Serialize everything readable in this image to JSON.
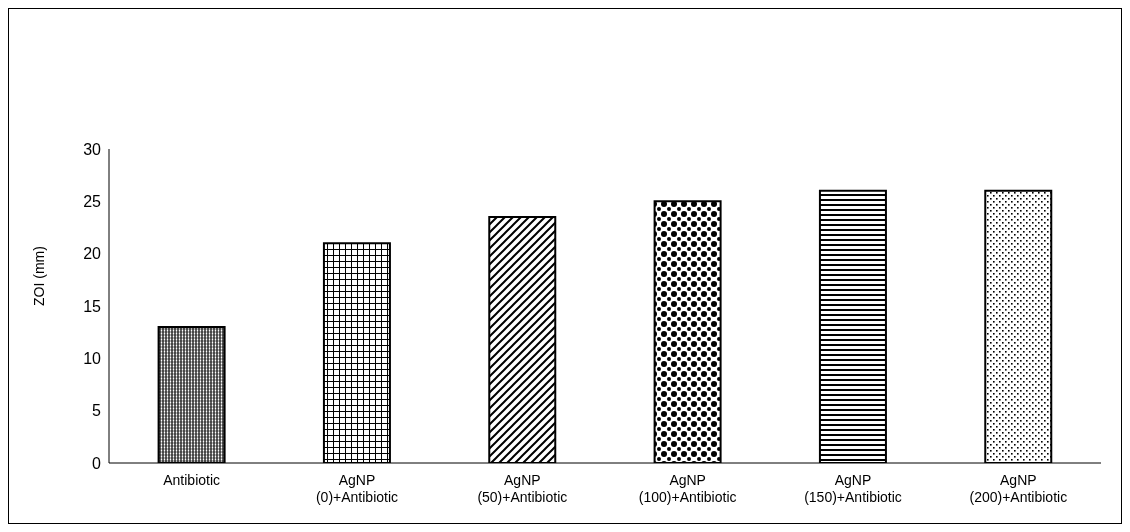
{
  "chart_data": {
    "type": "bar",
    "ylabel": "ZOI (mm)",
    "categories": [
      "Antibiotic",
      "AgNP (0)+Antibiotic",
      "AgNP (50)+Antibiotic",
      "AgNP (100)+Antibiotic",
      "AgNP (150)+Antibiotic",
      "AgNP (200)+Antibiotic"
    ],
    "values": [
      13,
      21,
      23.5,
      25,
      26,
      26
    ],
    "colors": [
      "#000000",
      "#000000",
      "#000000",
      "#000000",
      "#000000",
      "#000000"
    ],
    "ylim": [
      0,
      30
    ],
    "yticks": [
      0,
      5,
      10,
      15,
      20,
      25,
      30
    ],
    "grid": false,
    "legend": false
  }
}
